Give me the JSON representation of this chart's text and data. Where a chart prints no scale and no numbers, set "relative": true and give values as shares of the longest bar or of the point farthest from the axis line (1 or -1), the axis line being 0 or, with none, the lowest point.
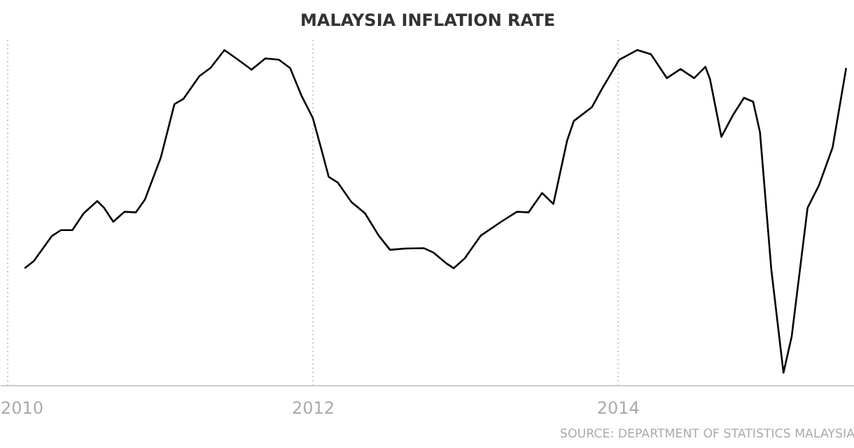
{
  "chart_data": {
    "type": "line",
    "title": "MALAYSIA INFLATION RATE",
    "annotations": [
      "SOURCE: DEPARTMENT OF STATISTICS MALAYSIA"
    ],
    "relative": true,
    "grid": "x",
    "marker": "none",
    "line_style": "solid",
    "xlim": [
      2009.95,
      2015.55
    ],
    "xticks": [
      2010,
      2012,
      2014
    ],
    "x": [
      2010.107,
      2010.167,
      2010.286,
      2010.345,
      2010.42,
      2010.494,
      2010.583,
      2010.628,
      2010.688,
      2010.762,
      2010.836,
      2010.896,
      2011.0,
      2011.089,
      2011.149,
      2011.253,
      2011.327,
      2011.417,
      2011.506,
      2011.595,
      2011.685,
      2011.774,
      2011.848,
      2011.923,
      2011.997,
      2012.057,
      2012.101,
      2012.161,
      2012.25,
      2012.339,
      2012.429,
      2012.503,
      2012.607,
      2012.726,
      2012.786,
      2012.875,
      2012.92,
      2012.994,
      2013.098,
      2013.232,
      2013.336,
      2013.411,
      2013.5,
      2013.574,
      2013.664,
      2013.708,
      2013.827,
      2013.887,
      2014.006,
      2014.125,
      2014.214,
      2014.318,
      2014.408,
      2014.497,
      2014.571,
      2014.601,
      2014.676,
      2014.75,
      2014.824,
      2014.884,
      2014.929,
      2015.003,
      2015.083,
      2015.137,
      2015.241,
      2015.315,
      2015.405,
      2015.494
    ],
    "series": [
      {
        "color": "#000000",
        "values": [
          0.324,
          0.346,
          0.424,
          0.442,
          0.442,
          0.494,
          0.532,
          0.511,
          0.468,
          0.499,
          0.497,
          0.537,
          0.667,
          0.832,
          0.849,
          0.919,
          0.945,
          1.0,
          0.97,
          0.939,
          0.974,
          0.97,
          0.944,
          0.858,
          0.789,
          0.685,
          0.607,
          0.589,
          0.529,
          0.494,
          0.425,
          0.381,
          0.385,
          0.386,
          0.373,
          0.338,
          0.324,
          0.355,
          0.425,
          0.468,
          0.499,
          0.497,
          0.557,
          0.523,
          0.719,
          0.78,
          0.823,
          0.875,
          0.97,
          1.0,
          0.987,
          0.913,
          0.941,
          0.913,
          0.948,
          0.91,
          0.731,
          0.797,
          0.852,
          0.84,
          0.745,
          0.321,
          0.0,
          0.113,
          0.511,
          0.58,
          0.698,
          0.944
        ]
      }
    ]
  }
}
